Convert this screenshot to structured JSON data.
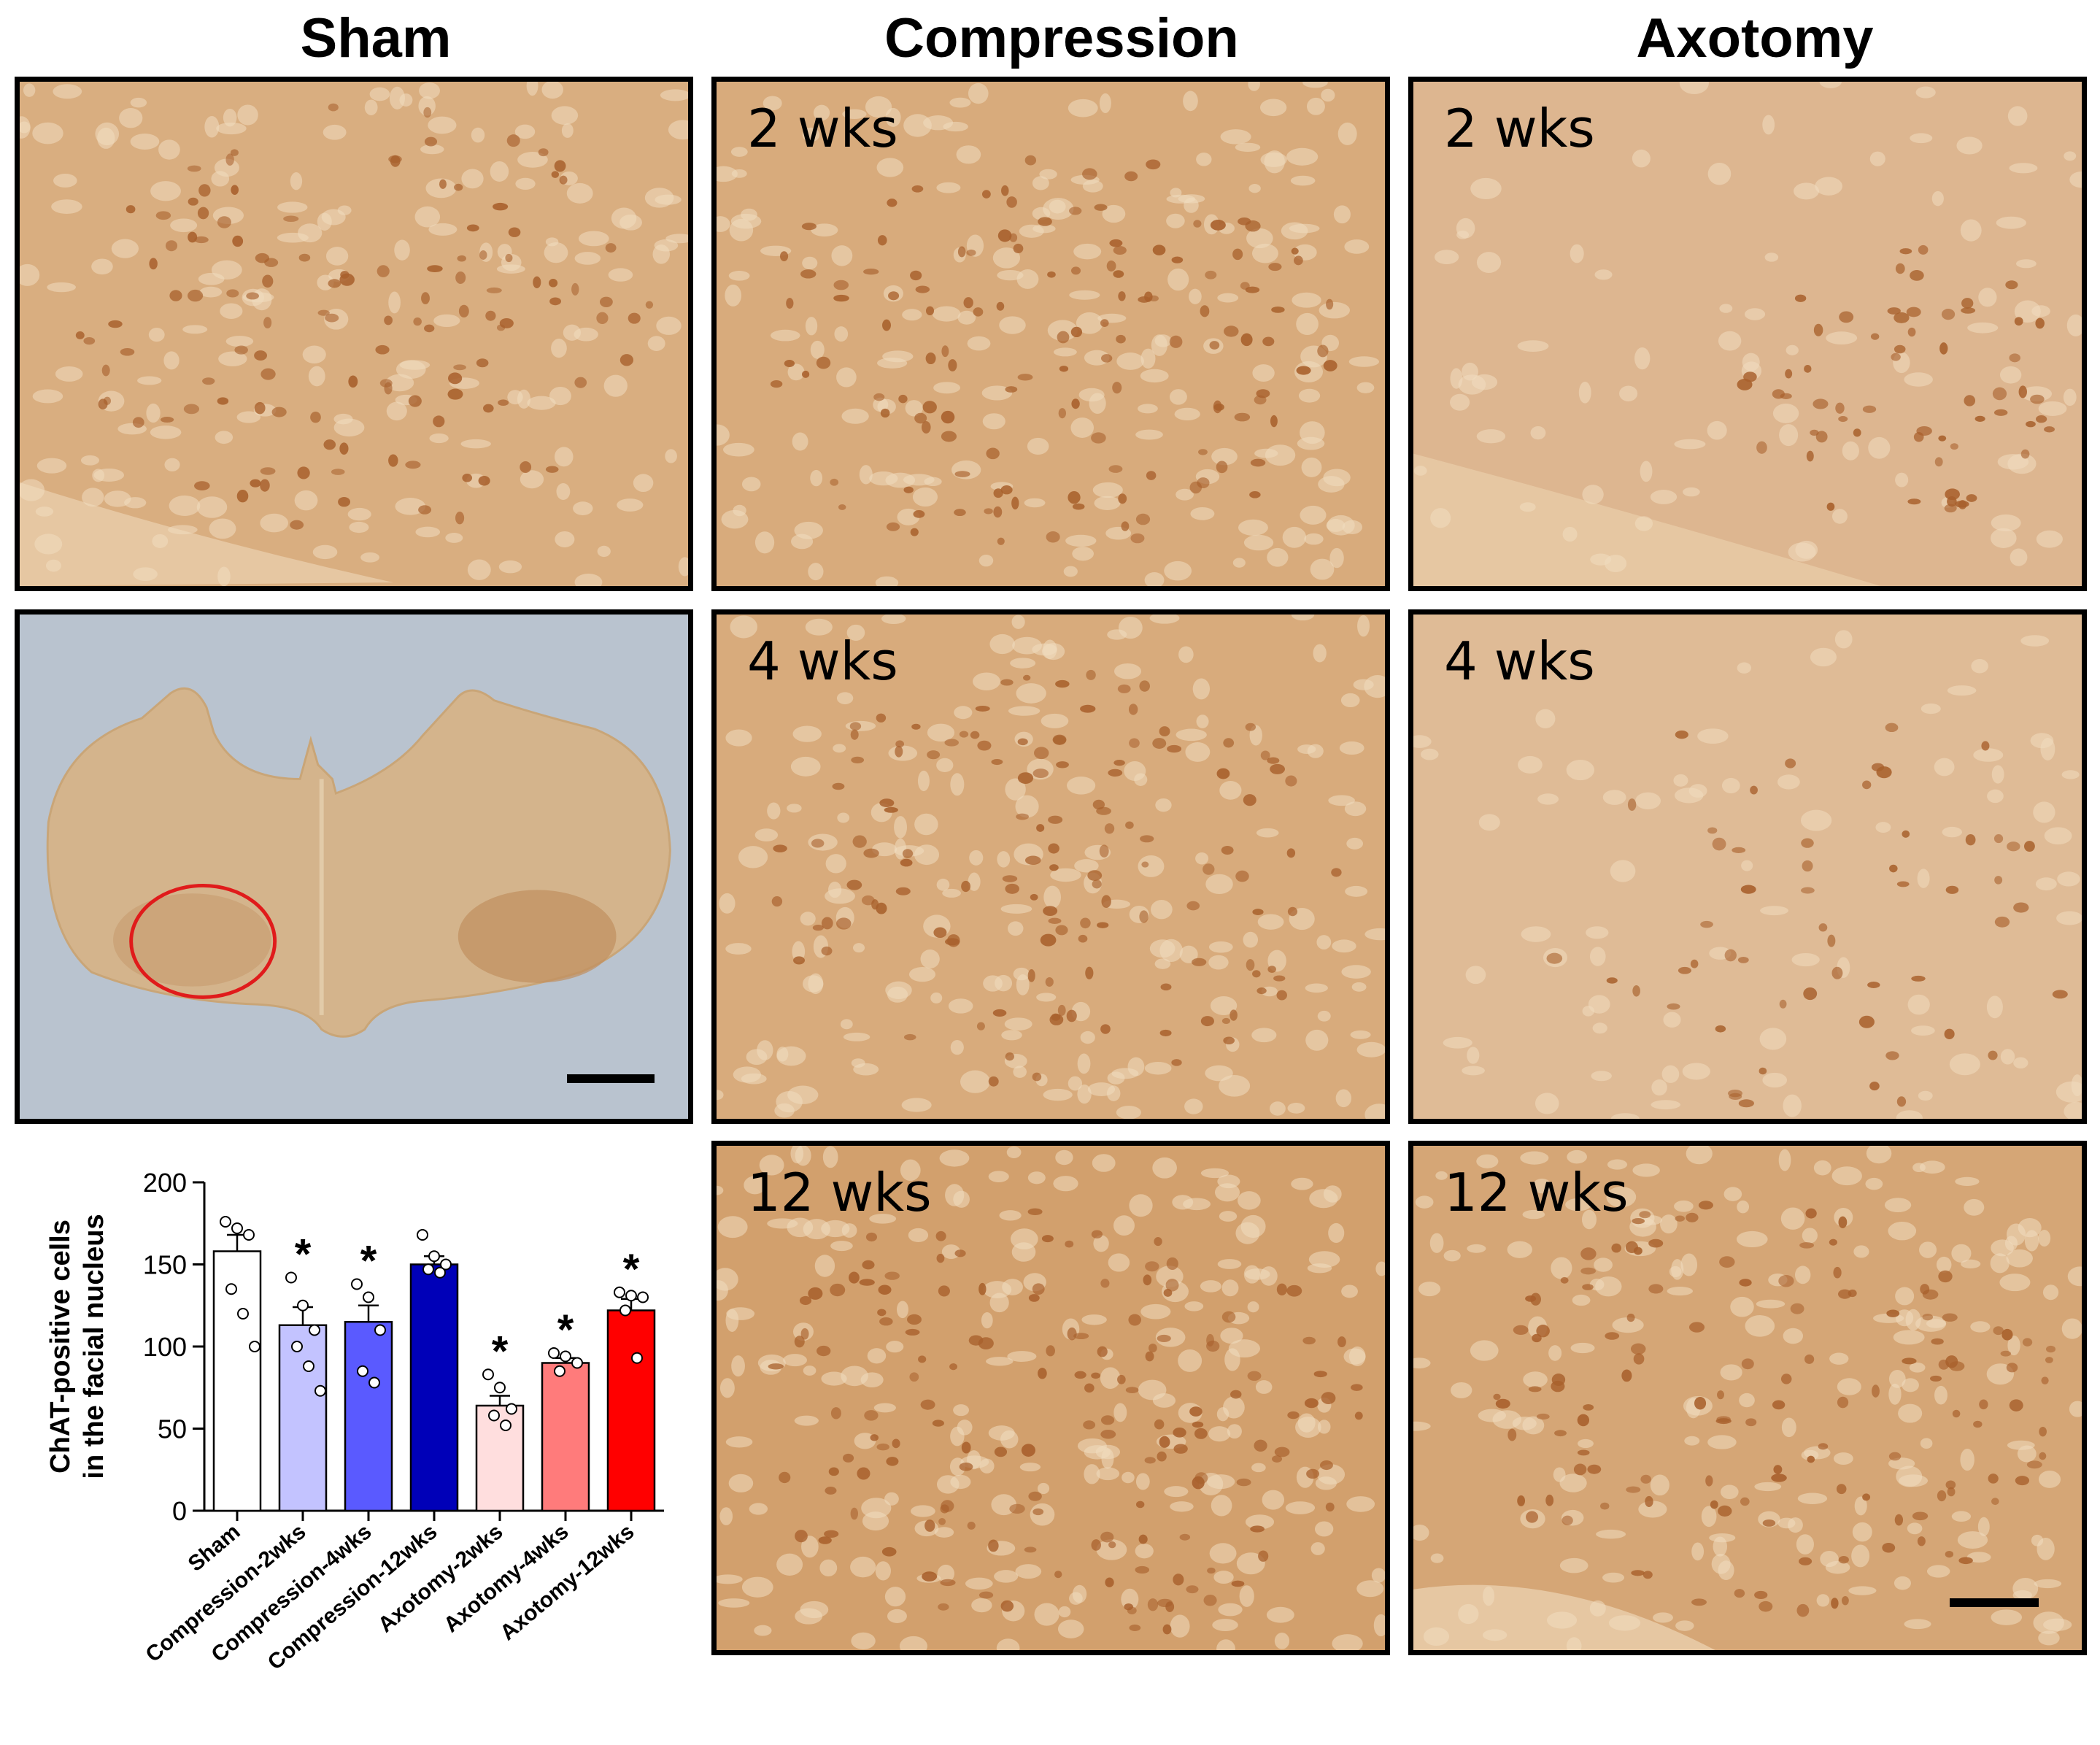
{
  "columns": {
    "sham": "Sham",
    "compression": "Compression",
    "axotomy": "Axotomy"
  },
  "panels": {
    "sham_top": {
      "label": ""
    },
    "sham_overview": {
      "label": ""
    },
    "compression_2": {
      "label": "2 wks"
    },
    "compression_4": {
      "label": "4 wks"
    },
    "compression_12": {
      "label": "12 wks"
    },
    "axotomy_2": {
      "label": "2 wks"
    },
    "axotomy_4": {
      "label": "4 wks"
    },
    "axotomy_12": {
      "label": "12 wks"
    }
  },
  "colors": {
    "stain": "#d7a97a",
    "stain_dark": "#a8602c",
    "slide_bg": "#b9c3cf",
    "roi_circle": "#e01b1b"
  },
  "chart_data": {
    "type": "bar",
    "ylabel": "ChAT-positive cells in the facial nucleus",
    "ylim": [
      0,
      200
    ],
    "yticks": [
      0,
      50,
      100,
      150,
      200
    ],
    "categories": [
      "Sham",
      "Compression-2wks",
      "Compression-4wks",
      "Compression-12wks",
      "Axotomy-2wks",
      "Axotomy-4wks",
      "Axotomy-12wks"
    ],
    "values": [
      158,
      113,
      115,
      150,
      64,
      90,
      122
    ],
    "sem": [
      10,
      11,
      10,
      5,
      6,
      3,
      7
    ],
    "significance": [
      "",
      "*",
      "*",
      "",
      "*",
      "*",
      "*"
    ],
    "colors": [
      "#ffffff",
      "#c3c3ff",
      "#5a5aff",
      "#0000b8",
      "#ffdede",
      "#ff7b7b",
      "#ff0000"
    ],
    "points": [
      [
        176,
        172,
        168,
        135,
        120,
        100
      ],
      [
        142,
        125,
        110,
        100,
        88,
        73
      ],
      [
        138,
        130,
        110,
        85,
        78
      ],
      [
        168,
        155,
        150,
        147,
        145
      ],
      [
        83,
        75,
        62,
        58,
        52
      ],
      [
        96,
        94,
        90,
        85
      ],
      [
        133,
        131,
        130,
        122,
        93
      ]
    ]
  }
}
